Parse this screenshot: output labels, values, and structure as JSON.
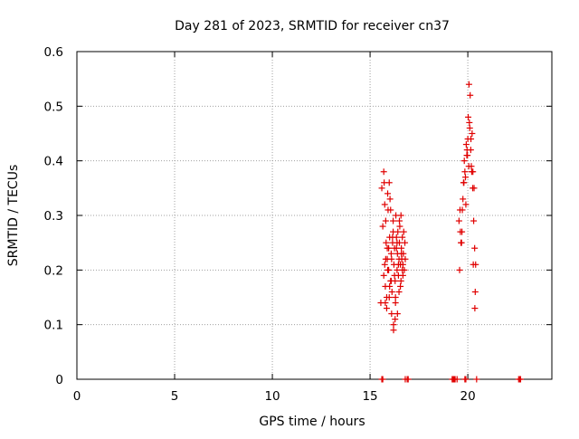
{
  "chart_data": {
    "type": "scatter",
    "title": "Day 281 of 2023, SRMTID for receiver cn37",
    "xlabel": "GPS time / hours",
    "ylabel": "SRMTID / TECUs",
    "xlim": [
      0,
      24.3
    ],
    "ylim": [
      0,
      0.6
    ],
    "x_ticks": [
      0,
      5,
      10,
      15,
      20
    ],
    "x_tick_labels": [
      "0",
      "5",
      "10",
      "15",
      "20"
    ],
    "y_ticks": [
      0,
      0.1,
      0.2,
      0.3,
      0.4,
      0.5,
      0.6
    ],
    "y_tick_labels": [
      "0",
      "0.1",
      "0.2",
      "0.3",
      "0.4",
      "0.5",
      "0.6"
    ],
    "grid": true,
    "marker": "+",
    "color": "#e00000",
    "series": [
      {
        "name": "SRMTID",
        "x": [
          15.55,
          15.6,
          15.65,
          15.7,
          15.72,
          15.75,
          15.78,
          15.8,
          15.82,
          15.85,
          15.88,
          15.9,
          15.92,
          15.95,
          15.98,
          16.0,
          16.02,
          16.05,
          16.08,
          16.1,
          16.12,
          16.15,
          16.18,
          16.2,
          16.22,
          16.25,
          16.28,
          16.3,
          16.32,
          16.35,
          16.38,
          16.4,
          16.42,
          16.45,
          16.48,
          16.5,
          16.52,
          16.55,
          16.58,
          16.6,
          16.62,
          16.65,
          16.68,
          16.7,
          16.72,
          16.75,
          16.78,
          16.8,
          15.7,
          15.75,
          15.8,
          15.85,
          15.9,
          15.95,
          16.0,
          16.05,
          16.1,
          16.15,
          16.2,
          16.25,
          16.3,
          16.35,
          16.4,
          16.45,
          16.5,
          16.55,
          16.6,
          16.65,
          15.78,
          15.88,
          15.98,
          16.08,
          16.18,
          16.28,
          16.38,
          16.48,
          16.58,
          16.68,
          19.55,
          19.6,
          19.65,
          19.7,
          19.75,
          19.8,
          19.85,
          19.9,
          19.95,
          20.0,
          20.05,
          20.1,
          20.15,
          20.2,
          20.25,
          20.3,
          20.35,
          20.4,
          19.62,
          19.72,
          19.82,
          19.92,
          20.02,
          20.12,
          20.22,
          20.32,
          19.88,
          19.98,
          20.08,
          20.18,
          20.28,
          20.38,
          19.58,
          19.68,
          19.78,
          19.96,
          20.06,
          20.16,
          20.26,
          20.36,
          15.6,
          15.65,
          16.8,
          16.9,
          16.95,
          19.2,
          19.25,
          19.3,
          19.35,
          19.45,
          19.85,
          19.9,
          20.45,
          22.6,
          22.65,
          22.7
        ],
        "y": [
          0.14,
          0.35,
          0.28,
          0.19,
          0.36,
          0.21,
          0.17,
          0.22,
          0.25,
          0.13,
          0.24,
          0.34,
          0.31,
          0.2,
          0.15,
          0.26,
          0.33,
          0.18,
          0.23,
          0.12,
          0.16,
          0.25,
          0.29,
          0.1,
          0.21,
          0.24,
          0.18,
          0.14,
          0.3,
          0.26,
          0.2,
          0.23,
          0.27,
          0.19,
          0.22,
          0.25,
          0.28,
          0.21,
          0.18,
          0.24,
          0.22,
          0.26,
          0.19,
          0.23,
          0.27,
          0.2,
          0.25,
          0.22,
          0.38,
          0.32,
          0.29,
          0.15,
          0.2,
          0.24,
          0.17,
          0.31,
          0.22,
          0.26,
          0.09,
          0.19,
          0.15,
          0.24,
          0.12,
          0.21,
          0.29,
          0.17,
          0.23,
          0.2,
          0.14,
          0.22,
          0.36,
          0.18,
          0.27,
          0.11,
          0.25,
          0.16,
          0.3,
          0.21,
          0.29,
          0.31,
          0.25,
          0.27,
          0.33,
          0.36,
          0.38,
          0.32,
          0.41,
          0.44,
          0.39,
          0.46,
          0.42,
          0.38,
          0.35,
          0.29,
          0.24,
          0.21,
          0.27,
          0.31,
          0.4,
          0.43,
          0.48,
          0.52,
          0.45,
          0.35,
          0.37,
          0.41,
          0.47,
          0.39,
          0.21,
          0.16,
          0.2,
          0.25,
          0.36,
          0.42,
          0.54,
          0.44,
          0.38,
          0.13,
          0.0,
          0.0,
          0.0,
          0.0,
          0.0,
          0.0,
          0.0,
          0.0,
          0.0,
          0.0,
          0.0,
          0.0,
          0.0,
          0.0,
          0.0,
          0.0
        ]
      }
    ]
  }
}
